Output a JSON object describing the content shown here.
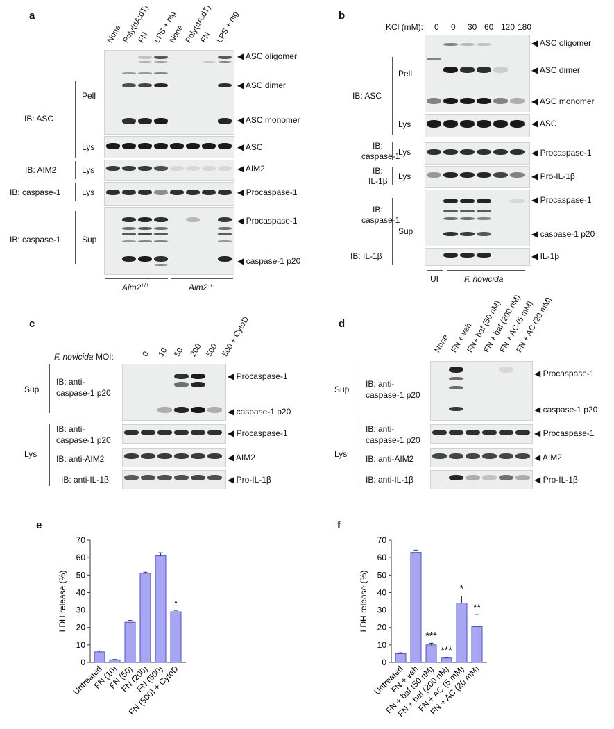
{
  "panels": {
    "a": {
      "letter": "a",
      "lanes": [
        "None",
        "Poly(dA:dT)",
        "FN",
        "LPS + nig",
        "None",
        "Poly(dA:dT)",
        "FN",
        "LPS + nig"
      ],
      "arrows": [
        "ASC oligomer",
        "ASC dimer",
        "ASC monomer",
        "ASC",
        "AIM2",
        "Procaspase-1",
        "Procaspase-1",
        "caspase-1 p20"
      ],
      "ib_labels": [
        "IB: ASC",
        "IB: AIM2",
        "IB: caspase-1",
        "IB: caspase-1"
      ],
      "fractions": [
        "Pell",
        "Lys",
        "Lys",
        "Lys",
        "Sup"
      ],
      "genotype_wt": "Aim2",
      "genotype_wt_sup": "+/+",
      "genotype_ko": "Aim2",
      "genotype_ko_sup": "–/–"
    },
    "b": {
      "letter": "b",
      "kcl_label": "KCl (mM):",
      "kcl_values": [
        "0",
        "0",
        "30",
        "60",
        "120",
        "180"
      ],
      "arrows": [
        "ASC oligomer",
        "ASC dimer",
        "ASC monomer",
        "ASC",
        "Procaspase-1",
        "Pro-IL-1β",
        "Procaspase-1",
        "caspase-1 p20",
        "IL-1β"
      ],
      "ib_labels": [
        "IB: ASC",
        "IB:",
        "caspase-1",
        "IB:",
        "IL-1β",
        "IB:",
        "caspase-1",
        "IB: IL-1β"
      ],
      "fractions": [
        "Pell",
        "Lys",
        "Lys",
        "Lys",
        "Sup"
      ],
      "ui_label": "UI",
      "fn_label": "F. novicida"
    },
    "c": {
      "letter": "c",
      "moi_label_italic": "F. novicida",
      "moi_label_rest": " MOI:",
      "lanes": [
        "0",
        "10",
        "50",
        "200",
        "500",
        "500 + CytoD"
      ],
      "arrows": [
        "Procaspase-1",
        "caspase-1 p20",
        "Procaspase-1",
        "AIM2",
        "Pro-IL-1β"
      ],
      "ib_sup_1": "IB: anti-",
      "ib_sup_2": "caspase-1 p20",
      "ib_lys_1": "IB: anti-",
      "ib_lys_2": "caspase-1 p20",
      "ib_aim2": "IB: anti-AIM2",
      "ib_il1b": "IB: anti-IL-1β",
      "fractions": [
        "Sup",
        "Lys"
      ]
    },
    "d": {
      "letter": "d",
      "lanes": [
        "None",
        "FN + veh",
        "FN+ baf (50 nM)",
        "FN + baf (200 nM)",
        "FN + AC (5 mM)",
        "FN + AC (20 mM)"
      ],
      "arrows": [
        "Procaspase-1",
        "caspase-1 p20",
        "Procaspase-1",
        "AIM2",
        "Pro-IL-1β"
      ],
      "ib_sup_1": "IB: anti-",
      "ib_sup_2": "caspase-1 p20",
      "ib_lys_1": "IB: anti-",
      "ib_lys_2": "caspase-1 p20",
      "ib_aim2": "IB: anti-AIM2",
      "ib_il1b": "IB: anti-IL-1β",
      "fractions": [
        "Sup",
        "Lys"
      ]
    },
    "e": {
      "letter": "e"
    },
    "f": {
      "letter": "f"
    }
  },
  "colors": {
    "bar_fill": "#a6a6f2",
    "bar_stroke": "#5050c0",
    "band": "#1a1a1a"
  },
  "chart_data": [
    {
      "type": "bar",
      "panel": "e",
      "categories": [
        "Untreated",
        "FN (10)",
        "FN (50)",
        "FN (200)",
        "FN (500)",
        "FN (500) + CytoD"
      ],
      "values": [
        6,
        1.5,
        23,
        51,
        61,
        29
      ],
      "errors": [
        0.6,
        0.2,
        1.0,
        0.6,
        1.8,
        0.8
      ],
      "annotations": [
        "",
        "",
        "",
        "",
        "",
        "*"
      ],
      "ylabel": "LDH release (%)",
      "ylim": [
        0,
        70
      ],
      "yticks": [
        0,
        10,
        20,
        30,
        40,
        50,
        60,
        70
      ]
    },
    {
      "type": "bar",
      "panel": "f",
      "categories": [
        "Untreated",
        "FN + veh",
        "FN + baf (50 nM)",
        "FN + baf (200 nM)",
        "FN + AC (5 mM)",
        "FN + AC (20 mM)"
      ],
      "values": [
        5,
        63,
        10,
        2.5,
        34,
        20.5
      ],
      "errors": [
        0.5,
        1.3,
        1.0,
        0.3,
        4.0,
        7.0
      ],
      "annotations": [
        "",
        "",
        "***",
        "***",
        "*",
        "**"
      ],
      "ylabel": "LDH release (%)",
      "ylim": [
        0,
        70
      ],
      "yticks": [
        0,
        10,
        20,
        30,
        40,
        50,
        60,
        70
      ]
    }
  ]
}
